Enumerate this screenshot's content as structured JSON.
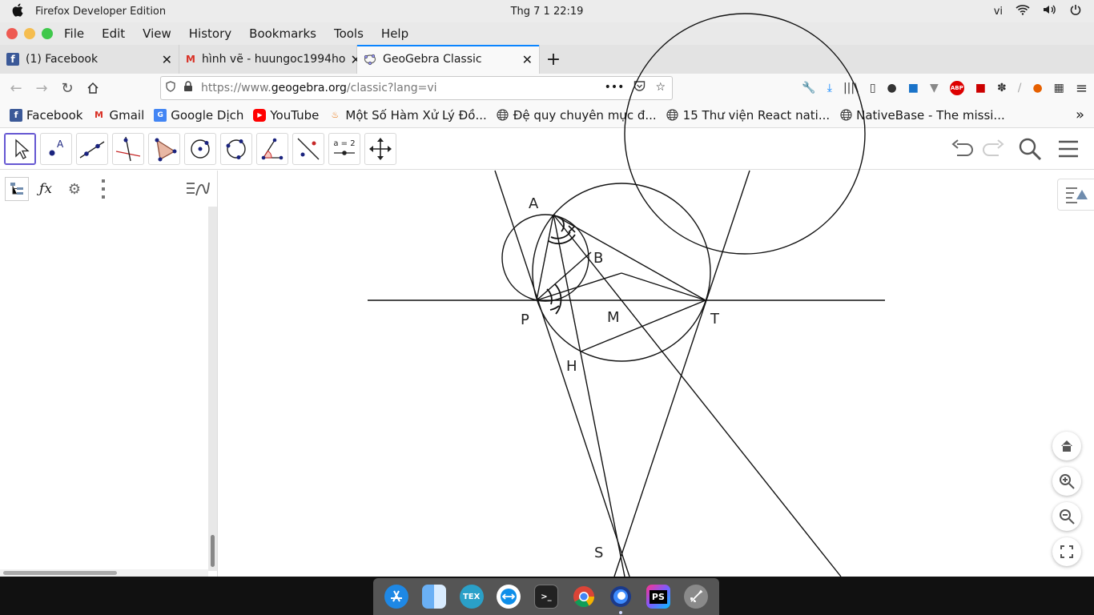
{
  "system": {
    "app_name": "Firefox Developer Edition",
    "clock": "Thg 7 1  22:19",
    "input_lang": "vi"
  },
  "menu": {
    "items": [
      "File",
      "Edit",
      "View",
      "History",
      "Bookmarks",
      "Tools",
      "Help"
    ]
  },
  "tabs": [
    {
      "title": "(1) Facebook",
      "icon": "facebook-icon",
      "active": false
    },
    {
      "title": "hình vẽ - huungoc1994ho",
      "icon": "gmail-icon",
      "active": false
    },
    {
      "title": "GeoGebra Classic",
      "icon": "geogebra-icon",
      "active": true
    }
  ],
  "address": {
    "url_prefix": "https://www.",
    "url_domain": "geogebra.org",
    "url_suffix": "/classic?lang=vi"
  },
  "bookmarks": [
    {
      "label": "Facebook",
      "icon": "facebook-icon"
    },
    {
      "label": "Gmail",
      "icon": "gmail-icon"
    },
    {
      "label": "Google Dịch",
      "icon": "translate-icon"
    },
    {
      "label": "YouTube",
      "icon": "youtube-icon"
    },
    {
      "label": "Một Số Hàm Xử Lý Đồ...",
      "icon": "fire-icon"
    },
    {
      "label": "Đệ quy chuyên mục đ...",
      "icon": "globe-icon"
    },
    {
      "label": "15 Thư viện React nati...",
      "icon": "globe-icon"
    },
    {
      "label": "NativeBase - The missi...",
      "icon": "globe-icon"
    }
  ],
  "ggb_tools": [
    "move-tool",
    "point-tool",
    "line-tool",
    "perpendicular-line-tool",
    "polygon-tool",
    "circle-center-point-tool",
    "circle-three-points-tool",
    "angle-tool",
    "reflect-tool",
    "slider-tool",
    "move-graphics-view-tool"
  ],
  "slider_tool_text": "a = 2",
  "geometry": {
    "labels": {
      "A": "A",
      "B": "B",
      "P": "P",
      "M": "M",
      "T": "T",
      "H": "H",
      "S": "S"
    }
  },
  "dock_apps": [
    "App Store",
    "Finder",
    "TeX",
    "TeamViewer",
    "Terminal",
    "Chrome",
    "Firefox",
    "PhpStorm",
    "Launchpad"
  ],
  "dock_text": {
    "tex": "TEX",
    "phpstorm": "PS",
    "terminal": ">_"
  },
  "colors": {
    "accent": "#0a84ff",
    "ggb_selected": "#6557d2"
  }
}
